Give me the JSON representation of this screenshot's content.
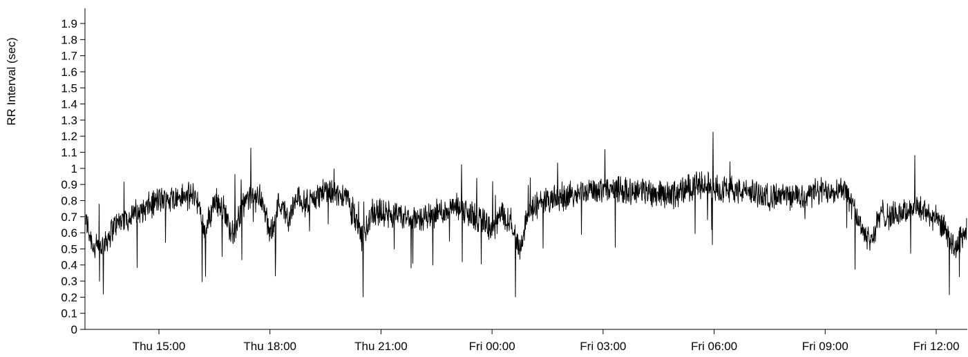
{
  "chart_data": {
    "type": "line",
    "title": "",
    "xlabel": "",
    "ylabel": "RR Interval (sec)",
    "ylim": [
      0,
      2.0
    ],
    "xlim": [
      "Thu 13:00",
      "Fri 12:45"
    ],
    "y_ticks": [
      "0",
      "0.1",
      "0.2",
      "0.3",
      "0.4",
      "0.5",
      "0.6",
      "0.7",
      "0.8",
      "0.9",
      "1",
      "1.1",
      "1.2",
      "1.3",
      "1.4",
      "1.5",
      "1.6",
      "1.7",
      "1.8",
      "1.9"
    ],
    "x_ticks": [
      "Thu 15:00",
      "Thu 18:00",
      "Thu 21:00",
      "Fri 00:00",
      "Fri 03:00",
      "Fri 06:00",
      "Fri 09:00",
      "Fri 12:00"
    ],
    "grid": false,
    "series": [
      {
        "color": "#000000",
        "x": [
          "Thu 13:00",
          "Thu 13:15",
          "Thu 13:30",
          "Thu 13:45",
          "Thu 14:00",
          "Thu 14:30",
          "Thu 15:00",
          "Thu 15:30",
          "Thu 16:00",
          "Thu 16:15",
          "Thu 16:30",
          "Thu 16:45",
          "Thu 17:00",
          "Thu 17:15",
          "Thu 17:30",
          "Thu 17:45",
          "Thu 18:00",
          "Thu 18:15",
          "Thu 18:30",
          "Thu 18:45",
          "Thu 19:00",
          "Thu 19:30",
          "Thu 19:45",
          "Thu 20:00",
          "Thu 20:15",
          "Thu 20:30",
          "Thu 20:45",
          "Thu 21:00",
          "Thu 21:30",
          "Thu 22:00",
          "Thu 22:30",
          "Thu 23:00",
          "Thu 23:30",
          "Thu 23:45",
          "Fri 00:00",
          "Fri 00:15",
          "Fri 00:30",
          "Fri 00:45",
          "Fri 01:00",
          "Fri 01:30",
          "Fri 02:00",
          "Fri 02:30",
          "Fri 03:00",
          "Fri 03:30",
          "Fri 04:00",
          "Fri 04:30",
          "Fri 05:00",
          "Fri 05:30",
          "Fri 06:00",
          "Fri 06:30",
          "Fri 07:00",
          "Fri 07:30",
          "Fri 08:00",
          "Fri 08:30",
          "Fri 09:00",
          "Fri 09:30",
          "Fri 10:00",
          "Fri 10:15",
          "Fri 10:30",
          "Fri 10:45",
          "Fri 11:00",
          "Fri 11:30",
          "Fri 12:00",
          "Fri 12:15",
          "Fri 12:30",
          "Fri 12:45"
        ],
        "y": [
          0.7,
          0.5,
          0.52,
          0.63,
          0.68,
          0.73,
          0.8,
          0.82,
          0.83,
          0.6,
          0.8,
          0.75,
          0.58,
          0.77,
          0.82,
          0.83,
          0.58,
          0.8,
          0.68,
          0.82,
          0.78,
          0.87,
          0.83,
          0.85,
          0.72,
          0.55,
          0.74,
          0.72,
          0.7,
          0.68,
          0.72,
          0.76,
          0.7,
          0.68,
          0.6,
          0.72,
          0.68,
          0.5,
          0.75,
          0.8,
          0.83,
          0.86,
          0.87,
          0.87,
          0.86,
          0.85,
          0.84,
          0.9,
          0.88,
          0.87,
          0.85,
          0.82,
          0.82,
          0.84,
          0.86,
          0.88,
          0.63,
          0.55,
          0.72,
          0.7,
          0.72,
          0.76,
          0.68,
          0.62,
          0.5,
          0.6
        ]
      }
    ]
  }
}
